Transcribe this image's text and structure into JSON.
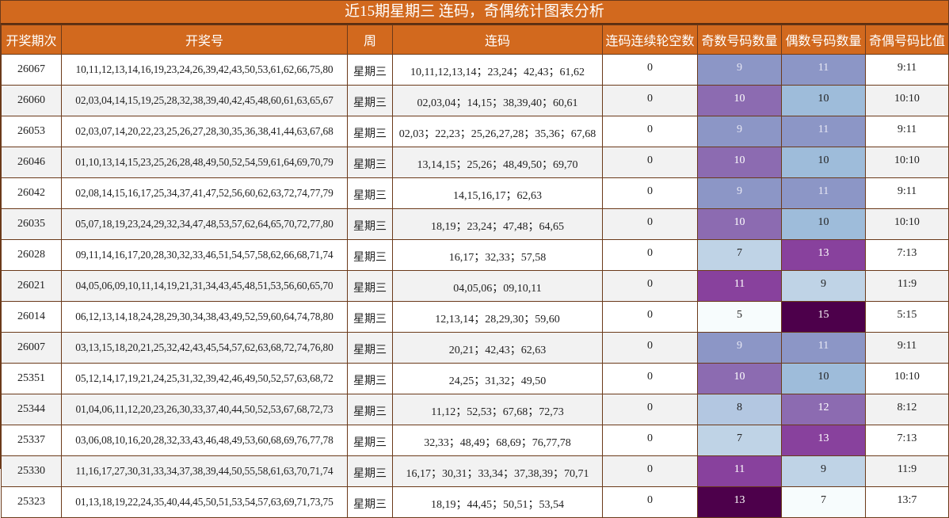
{
  "title": "近15期星期三 连码，奇偶统计图表分析",
  "columns": [
    "开奖期次",
    "开奖号",
    "周",
    "连码",
    "连码连续轮空数",
    "奇数号码数量",
    "偶数号码数量",
    "奇偶号码比值"
  ],
  "colors": {
    "header_bg": "#d2691e",
    "header_text": "#ffffff",
    "border": "#6b3a1a",
    "row_alt_bg": "#f2f2f2",
    "heat_scale": {
      "5": "#f7fcfd",
      "7": "#bfd3e6",
      "8": "#b0c6e0",
      "9": "#9ebcda",
      "9_odd": "#8c96c6",
      "10": "#8c6bb1",
      "11": "#88419d",
      "12": "#8c6bb1",
      "13": "#4d004b",
      "15": "#4d004b"
    }
  },
  "rows": [
    {
      "period": "26067",
      "numbers": "10,11,12,13,14,16,19,23,24,26,39,42,43,50,53,61,62,66,75,80",
      "week": "星期三",
      "lianma": "10,11,12,13,14；23,24；42,43；61,62",
      "gap": "0",
      "odd": "9",
      "even": "11",
      "ratio": "9:11"
    },
    {
      "period": "26060",
      "numbers": "02,03,04,14,15,19,25,28,32,38,39,40,42,45,48,60,61,63,65,67",
      "week": "星期三",
      "lianma": "02,03,04；14,15；38,39,40；60,61",
      "gap": "0",
      "odd": "10",
      "even": "10",
      "ratio": "10:10"
    },
    {
      "period": "26053",
      "numbers": "02,03,07,14,20,22,23,25,26,27,28,30,35,36,38,41,44,63,67,68",
      "week": "星期三",
      "lianma": "02,03；22,23；25,26,27,28；35,36；67,68",
      "gap": "0",
      "odd": "9",
      "even": "11",
      "ratio": "9:11"
    },
    {
      "period": "26046",
      "numbers": "01,10,13,14,15,23,25,26,28,48,49,50,52,54,59,61,64,69,70,79",
      "week": "星期三",
      "lianma": "13,14,15；25,26；48,49,50；69,70",
      "gap": "0",
      "odd": "10",
      "even": "10",
      "ratio": "10:10"
    },
    {
      "period": "26042",
      "numbers": "02,08,14,15,16,17,25,34,37,41,47,52,56,60,62,63,72,74,77,79",
      "week": "星期三",
      "lianma": "14,15,16,17；62,63",
      "gap": "0",
      "odd": "9",
      "even": "11",
      "ratio": "9:11"
    },
    {
      "period": "26035",
      "numbers": "05,07,18,19,23,24,29,32,34,47,48,53,57,62,64,65,70,72,77,80",
      "week": "星期三",
      "lianma": "18,19；23,24；47,48；64,65",
      "gap": "0",
      "odd": "10",
      "even": "10",
      "ratio": "10:10"
    },
    {
      "period": "26028",
      "numbers": "09,11,14,16,17,20,28,30,32,33,46,51,54,57,58,62,66,68,71,74",
      "week": "星期三",
      "lianma": "16,17；32,33；57,58",
      "gap": "0",
      "odd": "7",
      "even": "13",
      "ratio": "7:13"
    },
    {
      "period": "26021",
      "numbers": "04,05,06,09,10,11,14,19,21,31,34,43,45,48,51,53,56,60,65,70",
      "week": "星期三",
      "lianma": "04,05,06；09,10,11",
      "gap": "0",
      "odd": "11",
      "even": "9",
      "ratio": "11:9"
    },
    {
      "period": "26014",
      "numbers": "06,12,13,14,18,24,28,29,30,34,38,43,49,52,59,60,64,74,78,80",
      "week": "星期三",
      "lianma": "12,13,14；28,29,30；59,60",
      "gap": "0",
      "odd": "5",
      "even": "15",
      "ratio": "5:15"
    },
    {
      "period": "26007",
      "numbers": "03,13,15,18,20,21,25,32,42,43,45,54,57,62,63,68,72,74,76,80",
      "week": "星期三",
      "lianma": "20,21；42,43；62,63",
      "gap": "0",
      "odd": "9",
      "even": "11",
      "ratio": "9:11"
    },
    {
      "period": "25351",
      "numbers": "05,12,14,17,19,21,24,25,31,32,39,42,46,49,50,52,57,63,68,72",
      "week": "星期三",
      "lianma": "24,25；31,32；49,50",
      "gap": "0",
      "odd": "10",
      "even": "10",
      "ratio": "10:10"
    },
    {
      "period": "25344",
      "numbers": "01,04,06,11,12,20,23,26,30,33,37,40,44,50,52,53,67,68,72,73",
      "week": "星期三",
      "lianma": "11,12；52,53；67,68；72,73",
      "gap": "0",
      "odd": "8",
      "even": "12",
      "ratio": "8:12"
    },
    {
      "period": "25337",
      "numbers": "03,06,08,10,16,20,28,32,33,43,46,48,49,53,60,68,69,76,77,78",
      "week": "星期三",
      "lianma": "32,33；48,49；68,69；76,77,78",
      "gap": "0",
      "odd": "7",
      "even": "13",
      "ratio": "7:13"
    },
    {
      "period": "25330",
      "numbers": "11,16,17,27,30,31,33,34,37,38,39,44,50,55,58,61,63,70,71,74",
      "week": "星期三",
      "lianma": "16,17；30,31；33,34；37,38,39；70,71",
      "gap": "0",
      "odd": "11",
      "even": "9",
      "ratio": "11:9"
    },
    {
      "period": "25323",
      "numbers": "01,13,18,19,22,24,35,40,44,45,50,51,53,54,57,63,69,71,73,75",
      "week": "星期三",
      "lianma": "18,19；44,45；50,51；53,54",
      "gap": "0",
      "odd": "13",
      "even": "7",
      "ratio": "13:7"
    }
  ]
}
